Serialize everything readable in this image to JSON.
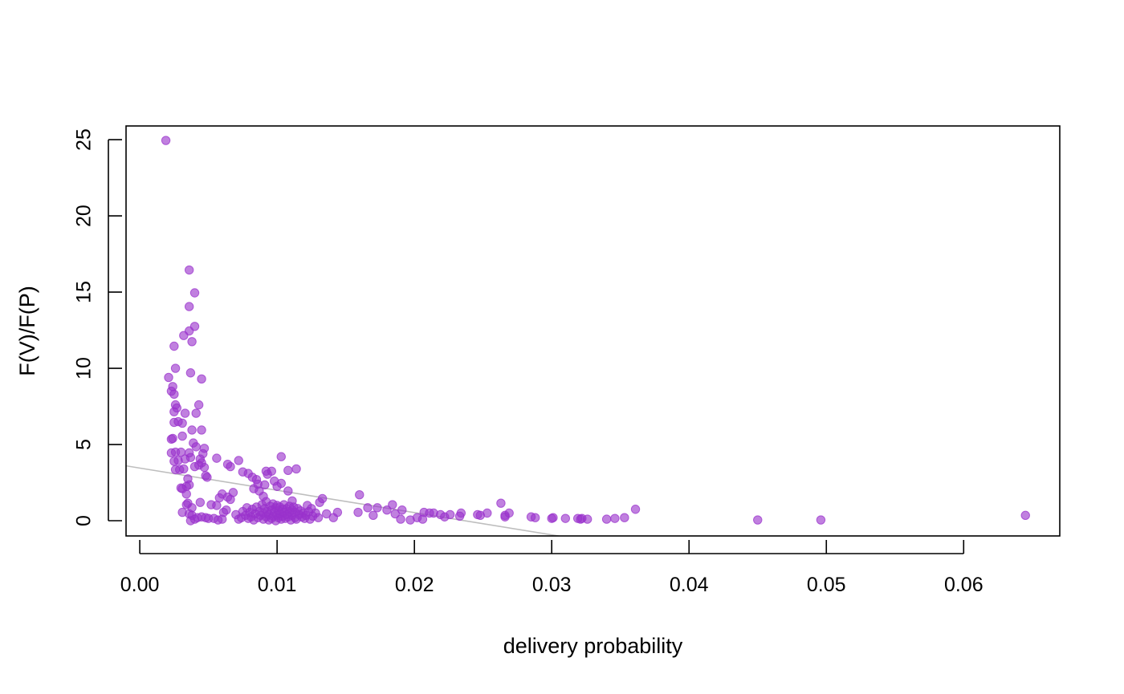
{
  "chart_data": {
    "type": "scatter",
    "xlabel": "delivery probability",
    "ylabel": "F(V)/F(P)",
    "xlim": [
      -0.001,
      0.067
    ],
    "ylim": [
      -1.0,
      25.9
    ],
    "x_ticks": [
      0.0,
      0.01,
      0.02,
      0.03,
      0.04,
      0.05,
      0.06
    ],
    "x_tick_labels": [
      "0.00",
      "0.01",
      "0.02",
      "0.03",
      "0.04",
      "0.05",
      "0.06"
    ],
    "y_ticks": [
      0,
      5,
      10,
      15,
      20,
      25
    ],
    "y_tick_labels": [
      "0",
      "5",
      "10",
      "15",
      "20",
      "25"
    ],
    "grid": false,
    "colors": {
      "points": "#9932CC",
      "trend_line": "#BEBEBE",
      "axes": "#000000"
    },
    "trend_line": {
      "x0": -0.001,
      "y0": 3.6,
      "x1": 0.0305,
      "y1": -1.0
    },
    "series": [
      {
        "points": [
          [
            0.0019,
            24.95
          ],
          [
            0.0036,
            16.45
          ],
          [
            0.004,
            14.95
          ],
          [
            0.0036,
            14.05
          ],
          [
            0.004,
            12.75
          ],
          [
            0.0036,
            12.45
          ],
          [
            0.0032,
            12.15
          ],
          [
            0.0038,
            11.75
          ],
          [
            0.0025,
            11.45
          ],
          [
            0.0026,
            10.0
          ],
          [
            0.0021,
            9.4
          ],
          [
            0.0037,
            9.7
          ],
          [
            0.0045,
            9.3
          ],
          [
            0.0024,
            8.8
          ],
          [
            0.0023,
            8.5
          ],
          [
            0.0025,
            8.3
          ],
          [
            0.0026,
            7.6
          ],
          [
            0.0027,
            7.4
          ],
          [
            0.0025,
            7.15
          ],
          [
            0.0033,
            7.05
          ],
          [
            0.0043,
            7.6
          ],
          [
            0.0041,
            7.05
          ],
          [
            0.0025,
            6.45
          ],
          [
            0.0028,
            6.5
          ],
          [
            0.0031,
            6.4
          ],
          [
            0.0038,
            5.95
          ],
          [
            0.0045,
            5.95
          ],
          [
            0.0023,
            5.35
          ],
          [
            0.0024,
            5.4
          ],
          [
            0.0031,
            5.55
          ],
          [
            0.0039,
            5.1
          ],
          [
            0.0041,
            4.85
          ],
          [
            0.0047,
            4.75
          ],
          [
            0.0023,
            4.45
          ],
          [
            0.0026,
            4.5
          ],
          [
            0.003,
            4.5
          ],
          [
            0.0036,
            4.45
          ],
          [
            0.0046,
            4.4
          ],
          [
            0.0025,
            3.9
          ],
          [
            0.0028,
            3.95
          ],
          [
            0.0033,
            4.05
          ],
          [
            0.0037,
            4.15
          ],
          [
            0.0044,
            4.05
          ],
          [
            0.004,
            3.55
          ],
          [
            0.0043,
            3.65
          ],
          [
            0.0047,
            3.5
          ],
          [
            0.0045,
            3.8
          ],
          [
            0.0026,
            3.35
          ],
          [
            0.0029,
            3.35
          ],
          [
            0.0032,
            3.4
          ],
          [
            0.0048,
            2.95
          ],
          [
            0.0049,
            2.85
          ],
          [
            0.0035,
            2.75
          ],
          [
            0.003,
            2.15
          ],
          [
            0.0031,
            2.1
          ],
          [
            0.0034,
            2.25
          ],
          [
            0.0036,
            2.35
          ],
          [
            0.0034,
            1.75
          ],
          [
            0.0035,
            1.15
          ],
          [
            0.0034,
            1.05
          ],
          [
            0.0038,
            0.85
          ],
          [
            0.0031,
            0.55
          ],
          [
            0.0036,
            0.45
          ],
          [
            0.0038,
            0.35
          ],
          [
            0.004,
            0.1
          ],
          [
            0.0042,
            0.2
          ],
          [
            0.0037,
            0.0
          ],
          [
            0.0045,
            0.25
          ],
          [
            0.0048,
            0.2
          ],
          [
            0.005,
            0.15
          ],
          [
            0.0044,
            1.2
          ],
          [
            0.0052,
            1.05
          ],
          [
            0.0056,
            1.0
          ],
          [
            0.0054,
            0.15
          ],
          [
            0.0057,
            0.05
          ],
          [
            0.006,
            0.1
          ],
          [
            0.0061,
            0.55
          ],
          [
            0.0063,
            0.7
          ],
          [
            0.0058,
            1.5
          ],
          [
            0.006,
            1.75
          ],
          [
            0.0064,
            1.55
          ],
          [
            0.0066,
            1.4
          ],
          [
            0.0068,
            1.85
          ],
          [
            0.0064,
            3.7
          ],
          [
            0.0066,
            3.55
          ],
          [
            0.0056,
            4.1
          ],
          [
            0.0072,
            3.95
          ],
          [
            0.0075,
            3.2
          ],
          [
            0.0079,
            3.1
          ],
          [
            0.0082,
            2.85
          ],
          [
            0.0085,
            2.7
          ],
          [
            0.0083,
            2.1
          ],
          [
            0.0087,
            1.95
          ],
          [
            0.009,
            1.6
          ],
          [
            0.0086,
            2.4
          ],
          [
            0.0091,
            2.35
          ],
          [
            0.0092,
            3.25
          ],
          [
            0.0093,
            3.05
          ],
          [
            0.0096,
            3.25
          ],
          [
            0.0098,
            2.6
          ],
          [
            0.01,
            2.25
          ],
          [
            0.0103,
            4.2
          ],
          [
            0.0103,
            2.45
          ],
          [
            0.0108,
            3.3
          ],
          [
            0.0114,
            3.4
          ],
          [
            0.0108,
            1.95
          ],
          [
            0.0111,
            1.3
          ],
          [
            0.007,
            0.4
          ],
          [
            0.0072,
            0.1
          ],
          [
            0.0074,
            0.2
          ],
          [
            0.0075,
            0.6
          ],
          [
            0.0077,
            0.35
          ],
          [
            0.0078,
            0.85
          ],
          [
            0.0079,
            0.15
          ],
          [
            0.008,
            0.55
          ],
          [
            0.0081,
            0.25
          ],
          [
            0.0082,
            0.75
          ],
          [
            0.0083,
            0.05
          ],
          [
            0.0084,
            0.45
          ],
          [
            0.0085,
            0.9
          ],
          [
            0.0086,
            0.2
          ],
          [
            0.0087,
            0.6
          ],
          [
            0.0088,
            0.35
          ],
          [
            0.0089,
            1.05
          ],
          [
            0.009,
            0.1
          ],
          [
            0.009,
            0.5
          ],
          [
            0.0091,
            0.8
          ],
          [
            0.0092,
            0.25
          ],
          [
            0.0092,
            1.25
          ],
          [
            0.0093,
            0.6
          ],
          [
            0.0094,
            0.05
          ],
          [
            0.0094,
            0.4
          ],
          [
            0.0095,
            0.95
          ],
          [
            0.0096,
            0.15
          ],
          [
            0.0096,
            0.7
          ],
          [
            0.0097,
            0.3
          ],
          [
            0.0097,
            1.1
          ],
          [
            0.0098,
            0.55
          ],
          [
            0.0099,
            0.0
          ],
          [
            0.0099,
            0.85
          ],
          [
            0.01,
            0.35
          ],
          [
            0.01,
            1.0
          ],
          [
            0.0101,
            0.2
          ],
          [
            0.0101,
            0.65
          ],
          [
            0.0102,
            0.45
          ],
          [
            0.0102,
            0.9
          ],
          [
            0.0103,
            0.1
          ],
          [
            0.0104,
            0.75
          ],
          [
            0.0104,
            0.3
          ],
          [
            0.0105,
            1.05
          ],
          [
            0.0105,
            0.55
          ],
          [
            0.0106,
            0.15
          ],
          [
            0.0107,
            0.8
          ],
          [
            0.0107,
            0.4
          ],
          [
            0.0108,
            0.25
          ],
          [
            0.0109,
            0.95
          ],
          [
            0.0109,
            0.6
          ],
          [
            0.011,
            0.05
          ],
          [
            0.0111,
            0.7
          ],
          [
            0.0111,
            0.35
          ],
          [
            0.0112,
            0.9
          ],
          [
            0.0113,
            0.2
          ],
          [
            0.0113,
            0.55
          ],
          [
            0.0114,
            0.1
          ],
          [
            0.0115,
            0.8
          ],
          [
            0.0116,
            0.4
          ],
          [
            0.0117,
            0.65
          ],
          [
            0.0118,
            0.25
          ],
          [
            0.0119,
            0.5
          ],
          [
            0.012,
            0.15
          ],
          [
            0.0121,
            0.35
          ],
          [
            0.0122,
            1.0
          ],
          [
            0.0123,
            0.6
          ],
          [
            0.0124,
            0.1
          ],
          [
            0.0125,
            0.8
          ],
          [
            0.0126,
            0.3
          ],
          [
            0.0128,
            0.5
          ],
          [
            0.013,
            0.2
          ],
          [
            0.0131,
            1.2
          ],
          [
            0.0133,
            1.45
          ],
          [
            0.0136,
            0.45
          ],
          [
            0.0141,
            0.2
          ],
          [
            0.0144,
            0.55
          ],
          [
            0.0159,
            0.55
          ],
          [
            0.016,
            1.7
          ],
          [
            0.0166,
            0.85
          ],
          [
            0.017,
            0.35
          ],
          [
            0.0173,
            0.85
          ],
          [
            0.018,
            0.7
          ],
          [
            0.0184,
            1.05
          ],
          [
            0.0186,
            0.45
          ],
          [
            0.019,
            0.1
          ],
          [
            0.0191,
            0.7
          ],
          [
            0.0197,
            0.05
          ],
          [
            0.0202,
            0.2
          ],
          [
            0.0206,
            0.1
          ],
          [
            0.0207,
            0.55
          ],
          [
            0.0211,
            0.5
          ],
          [
            0.0214,
            0.5
          ],
          [
            0.0219,
            0.4
          ],
          [
            0.0222,
            0.25
          ],
          [
            0.0226,
            0.4
          ],
          [
            0.0233,
            0.3
          ],
          [
            0.0234,
            0.5
          ],
          [
            0.0246,
            0.4
          ],
          [
            0.0248,
            0.35
          ],
          [
            0.0253,
            0.5
          ],
          [
            0.0263,
            1.15
          ],
          [
            0.0266,
            0.25
          ],
          [
            0.0266,
            0.35
          ],
          [
            0.0269,
            0.5
          ],
          [
            0.0285,
            0.25
          ],
          [
            0.0288,
            0.2
          ],
          [
            0.03,
            0.15
          ],
          [
            0.0301,
            0.2
          ],
          [
            0.031,
            0.15
          ],
          [
            0.0319,
            0.15
          ],
          [
            0.0321,
            0.1
          ],
          [
            0.0322,
            0.15
          ],
          [
            0.0326,
            0.1
          ],
          [
            0.034,
            0.1
          ],
          [
            0.0346,
            0.15
          ],
          [
            0.0353,
            0.2
          ],
          [
            0.0361,
            0.75
          ],
          [
            0.045,
            0.05
          ],
          [
            0.0496,
            0.05
          ],
          [
            0.0645,
            0.35
          ]
        ]
      }
    ]
  }
}
